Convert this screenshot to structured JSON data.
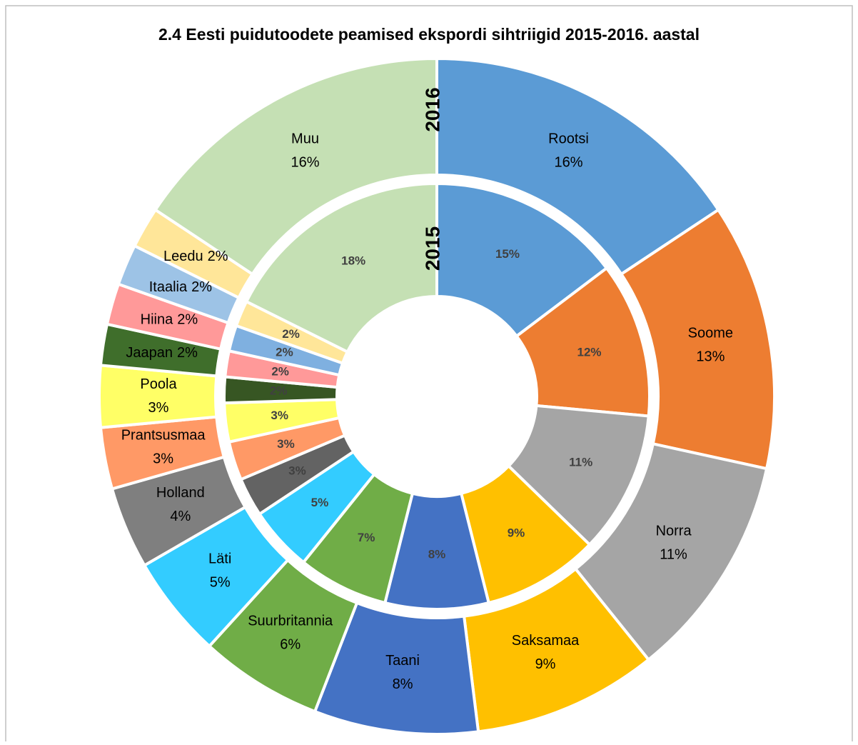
{
  "chart_data": {
    "type": "donut",
    "title": "2.4 Eesti puidutoodete peamised ekspordi sihtriigid 2015-2016. aastal",
    "categories": [
      "Rootsi",
      "Soome",
      "Norra",
      "Saksamaa",
      "Taani",
      "Suurbritannia",
      "Läti",
      "Holland",
      "Prantsusmaa",
      "Poola",
      "Jaapan",
      "Hiina",
      "Itaalia",
      "Leedu",
      "Muu"
    ],
    "series": [
      {
        "name": "2016",
        "values": [
          16,
          13,
          11,
          9,
          8,
          6,
          5,
          4,
          3,
          3,
          2,
          2,
          2,
          2,
          16
        ],
        "value_labels": [
          "16%",
          "13%",
          "11%",
          "9%",
          "8%",
          "6%",
          "5%",
          "4%",
          "3%",
          "3%",
          "2%",
          "2%",
          "2%",
          "2%",
          "16%"
        ],
        "colors": [
          "#5b9bd5",
          "#ed7d31",
          "#a5a5a5",
          "#ffc000",
          "#4472c4",
          "#70ad47",
          "#33ccff",
          "#7f7f7f",
          "#ff9966",
          "#ffff66",
          "#3f6e2b",
          "#ff9999",
          "#9dc3e6",
          "#ffe699",
          "#c5e0b4"
        ]
      },
      {
        "name": "2015",
        "values": [
          15,
          12,
          11,
          9,
          8,
          7,
          5,
          3,
          3,
          3,
          2,
          2,
          2,
          2,
          18
        ],
        "value_labels": [
          "15%",
          "12%",
          "11%",
          "9%",
          "8%",
          "7%",
          "5%",
          "3%",
          "3%",
          "3%",
          "2%",
          "2%",
          "2%",
          "2%",
          "18%"
        ],
        "colors": [
          "#5b9bd5",
          "#ed7d31",
          "#a5a5a5",
          "#ffc000",
          "#4472c4",
          "#70ad47",
          "#33ccff",
          "#636363",
          "#ff9966",
          "#ffff66",
          "#375623",
          "#ff9999",
          "#7fb0e0",
          "#ffe699",
          "#c5e0b4"
        ]
      }
    ]
  }
}
